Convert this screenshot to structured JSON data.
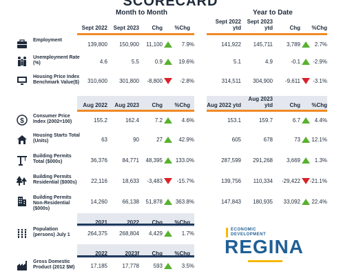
{
  "title": "SCORECARD",
  "sections": {
    "month": "Month to Month",
    "ytd": "Year to Date"
  },
  "header1": {
    "m": [
      "Sept 2022",
      "Sept 2023",
      "Chg",
      "%Chg"
    ],
    "y": [
      "Sept 2022 ytd",
      "Sept 2023 ytd",
      "Chg",
      "%Chg"
    ]
  },
  "header2": {
    "m": [
      "Aug 2022",
      "Aug 2023",
      "Chg",
      "%Chg"
    ],
    "y": [
      "Aug 2022 ytd",
      "Aug 2023 ytd",
      "Chg",
      "%Chg"
    ]
  },
  "header3": [
    "2021",
    "2022",
    "Chg",
    "%Chg"
  ],
  "header4": [
    "2022",
    "2023f",
    "Chg",
    "%Chg"
  ],
  "rows": [
    {
      "label": "Employment",
      "icon": "briefcase-icon",
      "m": [
        "139,800",
        "150,900",
        "11,100",
        "7.9%"
      ],
      "m_dir": "up",
      "y": [
        "141,922",
        "145,711",
        "3,789",
        "2.7%"
      ],
      "y_dir": "up"
    },
    {
      "label": "Unemployment Rate (%)",
      "icon": "people-icon",
      "m": [
        "4.6",
        "5.5",
        "0.9",
        "19.6%"
      ],
      "m_dir": "up",
      "y": [
        "5.1",
        "4.9",
        "-0.1",
        "-2.9%"
      ],
      "y_dir": "up"
    },
    {
      "label": "Housing Price Index Benchmark Value($)",
      "icon": "monitor-icon",
      "m": [
        "310,600",
        "301,800",
        "-8,800",
        "-2.8%"
      ],
      "m_dir": "down",
      "y": [
        "314,511",
        "304,900",
        "-9,611",
        "-3.1%"
      ],
      "y_dir": "down"
    },
    {
      "label": "Consumer Price Index (2002=100)",
      "icon": "dollar-icon",
      "m": [
        "155.2",
        "162.4",
        "7.2",
        "4.6%"
      ],
      "m_dir": "up",
      "y": [
        "153.1",
        "159.7",
        "6.7",
        "4.4%"
      ],
      "y_dir": "up"
    },
    {
      "label": "Housing Starts Total (Units)",
      "icon": "house-icon",
      "m": [
        "63",
        "90",
        "27",
        "42.9%"
      ],
      "m_dir": "up",
      "y": [
        "605",
        "678",
        "73",
        "12.1%"
      ],
      "y_dir": "up"
    },
    {
      "label": "Building Permits Total ($000s)",
      "icon": "crane-icon",
      "m": [
        "36,376",
        "84,771",
        "48,395",
        "133.0%"
      ],
      "m_dir": "up",
      "y": [
        "287,599",
        "291,268",
        "3,669",
        "1.3%"
      ],
      "y_dir": "up"
    },
    {
      "label": "Building Permits Residential ($000s)",
      "icon": "trees-icon",
      "m": [
        "22,116",
        "18,633",
        "-3,483",
        "-15.7%"
      ],
      "m_dir": "down",
      "y": [
        "139,756",
        "110,334",
        "-29,422",
        "-21.1%"
      ],
      "y_dir": "down"
    },
    {
      "label": "Building Permits Non-Residential ($000s)",
      "icon": "building-icon",
      "m": [
        "14,260",
        "66,138",
        "51,878",
        "363.8%"
      ],
      "m_dir": "up",
      "y": [
        "147,843",
        "180,935",
        "33,092",
        "22.4%"
      ],
      "y_dir": "up"
    },
    {
      "label": "Population (persons) July 1",
      "icon": "crowd-icon",
      "m": [
        "264,375",
        "268,804",
        "4,429",
        "1.7%"
      ],
      "m_dir": "up"
    },
    {
      "label": "Gross Domestic Product (2012 $M)",
      "icon": "factory-icon",
      "m": [
        "17,185",
        "17,778",
        "593",
        "3.5%"
      ],
      "m_dir": "up"
    }
  ],
  "logo": {
    "line1": "ECONOMIC",
    "line2": "DEVELOPMENT",
    "name": "REGINA"
  }
}
